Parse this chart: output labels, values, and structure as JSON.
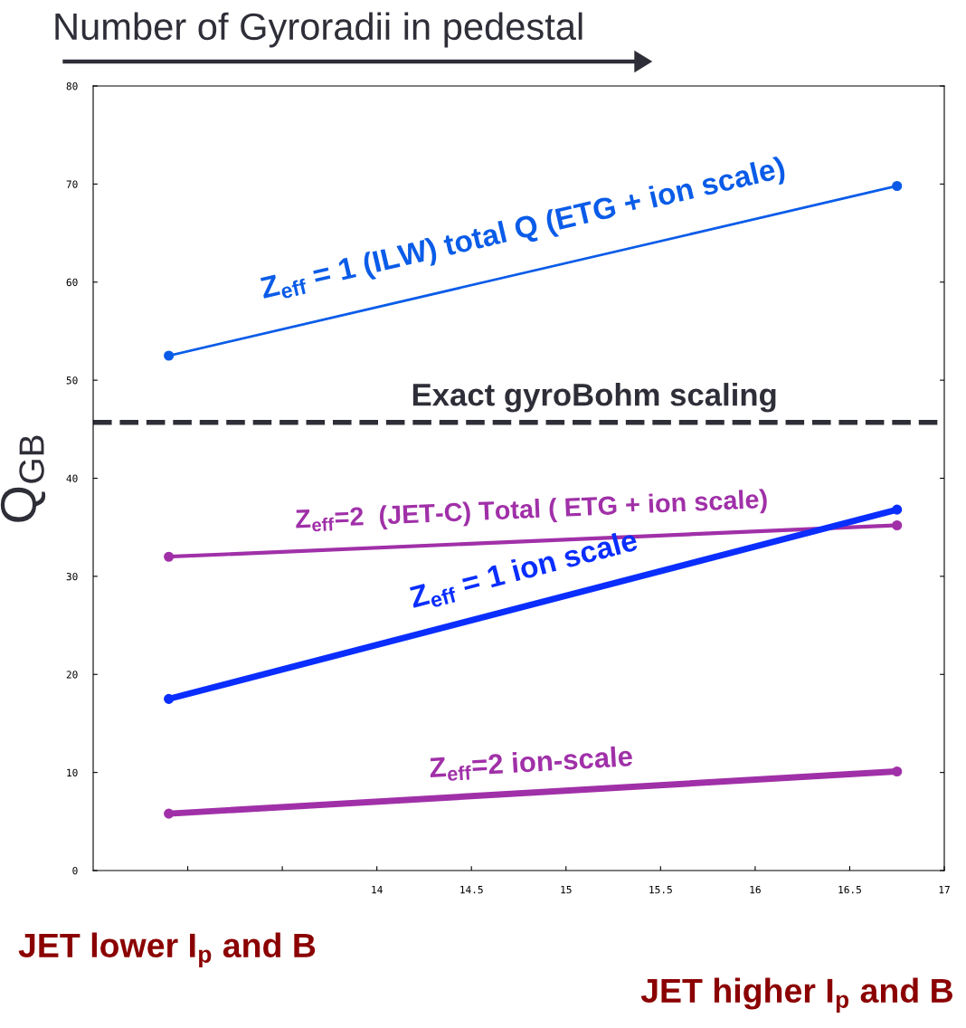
{
  "chart_data": {
    "type": "line",
    "title": "Number of Gyroradii in pedestal",
    "ylabel": "Q$_{GB}$",
    "x": [
      12.9,
      16.75
    ],
    "series": [
      {
        "name": "Z$_{eff}$ = 1 (ILW) total Q (ETG + ion scale)",
        "color": "#0a5ce8",
        "values": [
          52.5,
          69.8
        ]
      },
      {
        "name": "Z$_{eff}$=2  (JET-C) Total ( ETG + ion scale)",
        "color": "#a030a8",
        "values": [
          32.0,
          35.2
        ]
      },
      {
        "name": "Z$_{eff}$ = 1 ion scale",
        "color": "#0a2eff",
        "values": [
          17.5,
          36.8
        ]
      },
      {
        "name": "Z$_{eff}$=2 ion-scale",
        "color": "#a030a8",
        "values": [
          5.8,
          10.1
        ]
      }
    ],
    "xlim": [
      12.5,
      17
    ],
    "xticks": [
      {
        "value": 13,
        "label": null
      },
      {
        "value": 13.5,
        "label": null
      },
      14,
      14.5,
      15,
      15.5,
      16,
      16.5,
      17
    ],
    "ylim": [
      0,
      80
    ],
    "yticks": [
      0,
      10,
      20,
      30,
      40,
      50,
      60,
      70,
      80
    ],
    "ref_lines": [
      {
        "axis": "y",
        "value": 45.7,
        "label": "Exact gyroBohm scaling",
        "color": "#2e2e38",
        "line_style": "dashed"
      }
    ],
    "annotations": [
      "JET lower I$_{p}$ and B",
      "JET higher I$_{p}$ and B"
    ],
    "marker": "circle",
    "grid": false,
    "legend": false
  }
}
